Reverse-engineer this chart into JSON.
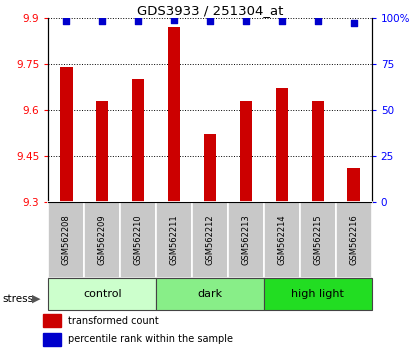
{
  "title": "GDS3933 / 251304_at",
  "samples": [
    "GSM562208",
    "GSM562209",
    "GSM562210",
    "GSM562211",
    "GSM562212",
    "GSM562213",
    "GSM562214",
    "GSM562215",
    "GSM562216"
  ],
  "bar_values": [
    9.74,
    9.63,
    9.7,
    9.87,
    9.52,
    9.63,
    9.67,
    9.63,
    9.41
  ],
  "percentile_values": [
    98,
    98,
    98,
    99,
    98,
    98,
    98,
    98,
    97
  ],
  "ylim_left": [
    9.3,
    9.9
  ],
  "ylim_right": [
    0,
    100
  ],
  "yticks_left": [
    9.3,
    9.45,
    9.6,
    9.75,
    9.9
  ],
  "yticks_right": [
    0,
    25,
    50,
    75,
    100
  ],
  "bar_color": "#cc0000",
  "dot_color": "#0000cc",
  "bg_plot": "#ffffff",
  "sample_bg": "#c8c8c8",
  "groups": [
    {
      "label": "control",
      "start": 0,
      "end": 3,
      "color": "#ccffcc"
    },
    {
      "label": "dark",
      "start": 3,
      "end": 6,
      "color": "#88ee88"
    },
    {
      "label": "high light",
      "start": 6,
      "end": 9,
      "color": "#22dd22"
    }
  ],
  "stress_label": "stress",
  "legend_items": [
    {
      "color": "#cc0000",
      "label": "transformed count"
    },
    {
      "color": "#0000cc",
      "label": "percentile rank within the sample"
    }
  ],
  "bar_width": 0.35
}
